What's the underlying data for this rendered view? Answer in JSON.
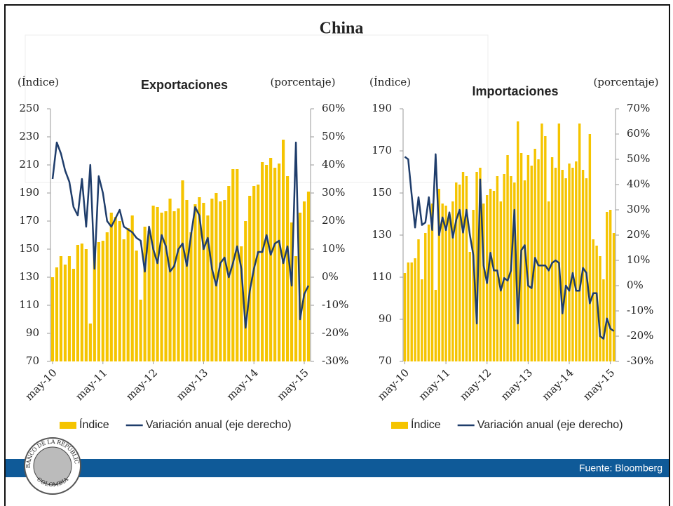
{
  "title": "China",
  "source": "Fuente: Bloomberg",
  "logo": {
    "top": "BANCO DE LA REPÚBLICA",
    "bottom": "COLOMBIA"
  },
  "chart_data": [
    {
      "type": "bar-line",
      "title": "Exportaciones",
      "ylabel": "(Índice)",
      "y2label": "(porcentaje)",
      "categories": [
        "may-10",
        null,
        null,
        null,
        null,
        null,
        null,
        null,
        null,
        null,
        null,
        null,
        "may-11",
        null,
        null,
        null,
        null,
        null,
        null,
        null,
        null,
        null,
        null,
        null,
        "may-12",
        null,
        null,
        null,
        null,
        null,
        null,
        null,
        null,
        null,
        null,
        null,
        "may-13",
        null,
        null,
        null,
        null,
        null,
        null,
        null,
        null,
        null,
        null,
        null,
        "may-14",
        null,
        null,
        null,
        null,
        null,
        null,
        null,
        null,
        null,
        null,
        null,
        "may-15",
        null
      ],
      "series": [
        {
          "name": "Índice",
          "type": "bar",
          "color": "#f5c400",
          "values": [
            130,
            137,
            145,
            139,
            145,
            136,
            153,
            154,
            150,
            97,
            152,
            155,
            156,
            162,
            176,
            173,
            170,
            157,
            165,
            174,
            149,
            114,
            166,
            163,
            181,
            180,
            176,
            177,
            186,
            177,
            179,
            199,
            185,
            162,
            182,
            187,
            183,
            174,
            186,
            190,
            184,
            185,
            195,
            207,
            207,
            152,
            170,
            188,
            195,
            196,
            212,
            210,
            215,
            208,
            211,
            228,
            202,
            169,
            145,
            176,
            184,
            191
          ]
        },
        {
          "name": "Variación anual (eje derecho)",
          "type": "line",
          "axis": "y2",
          "color": "#1f3d6b",
          "values": [
            35,
            48,
            44,
            38,
            34,
            25,
            22,
            35,
            18,
            40,
            3,
            36,
            30,
            20,
            18,
            21,
            24,
            18,
            17,
            16,
            14,
            13,
            2,
            18,
            10,
            5,
            15,
            11,
            2,
            4,
            10,
            12,
            4,
            15,
            25,
            22,
            10,
            14,
            3,
            -3,
            5,
            7,
            0,
            5,
            11,
            3,
            -18,
            -5,
            3,
            9,
            9,
            15,
            8,
            12,
            13,
            5,
            11,
            -3,
            48,
            -15,
            -6,
            -3
          ]
        }
      ],
      "ylim": [
        70,
        250
      ],
      "yticks": [
        70,
        90,
        110,
        130,
        150,
        170,
        190,
        210,
        230,
        250
      ],
      "y2lim": [
        -30,
        60
      ],
      "y2ticks": [
        {
          "value": -30,
          "label": "-30%"
        },
        {
          "value": -20,
          "label": "-20%"
        },
        {
          "value": -10,
          "label": "-10%"
        },
        {
          "value": 0,
          "label": "0%"
        },
        {
          "value": 10,
          "label": "10%"
        },
        {
          "value": 20,
          "label": "20%"
        },
        {
          "value": 30,
          "label": "30%"
        },
        {
          "value": 40,
          "label": "40%"
        },
        {
          "value": 50,
          "label": "50%"
        },
        {
          "value": 60,
          "label": "60%"
        }
      ]
    },
    {
      "type": "bar-line",
      "title": "Importaciones",
      "ylabel": "(Índice)",
      "y2label": "(porcentaje)",
      "categories": [
        "may-10",
        null,
        null,
        null,
        null,
        null,
        null,
        null,
        null,
        null,
        null,
        null,
        "may-11",
        null,
        null,
        null,
        null,
        null,
        null,
        null,
        null,
        null,
        null,
        null,
        "may-12",
        null,
        null,
        null,
        null,
        null,
        null,
        null,
        null,
        null,
        null,
        null,
        "may-13",
        null,
        null,
        null,
        null,
        null,
        null,
        null,
        null,
        null,
        null,
        null,
        "may-14",
        null,
        null,
        null,
        null,
        null,
        null,
        null,
        null,
        null,
        null,
        null,
        "may-15",
        null
      ],
      "series": [
        {
          "name": "Índice",
          "type": "bar",
          "color": "#f5c400",
          "values": [
            112,
            117,
            117,
            119,
            128,
            109,
            131,
            135,
            145,
            104,
            152,
            145,
            144,
            140,
            146,
            155,
            154,
            160,
            158,
            122,
            142,
            160,
            162,
            145,
            149,
            152,
            151,
            158,
            146,
            159,
            168,
            158,
            155,
            184,
            169,
            156,
            168,
            163,
            171,
            166,
            183,
            177,
            146,
            167,
            162,
            183,
            161,
            157,
            164,
            162,
            165,
            183,
            161,
            157,
            178,
            128,
            125,
            120,
            109,
            141,
            142,
            131
          ]
        },
        {
          "name": "Variación anual (eje derecho)",
          "type": "line",
          "axis": "y2",
          "color": "#1f3d6b",
          "values": [
            51,
            50,
            36,
            23,
            35,
            24,
            25,
            35,
            22,
            52,
            20,
            27,
            22,
            29,
            19,
            26,
            30,
            21,
            30,
            20,
            12,
            -15,
            42,
            8,
            1,
            13,
            6,
            6,
            -2,
            3,
            2,
            6,
            30,
            -15,
            14,
            16,
            0,
            -1,
            11,
            8,
            8,
            8,
            6,
            9,
            10,
            9,
            -11,
            0,
            -2,
            5,
            -2,
            -2,
            7,
            5,
            -7,
            -3,
            -3,
            -20,
            -21,
            -13,
            -17,
            -18
          ]
        }
      ],
      "ylim": [
        70,
        190
      ],
      "yticks": [
        70,
        90,
        110,
        130,
        150,
        170,
        190
      ],
      "y2lim": [
        -30,
        70
      ],
      "y2ticks": [
        {
          "value": -30,
          "label": "-30%"
        },
        {
          "value": -20,
          "label": "-20%"
        },
        {
          "value": -10,
          "label": "-10%"
        },
        {
          "value": 0,
          "label": "0%"
        },
        {
          "value": 10,
          "label": "10%"
        },
        {
          "value": 20,
          "label": "20%"
        },
        {
          "value": 30,
          "label": "30%"
        },
        {
          "value": 40,
          "label": "40%"
        },
        {
          "value": 50,
          "label": "50%"
        },
        {
          "value": 60,
          "label": "60%"
        },
        {
          "value": 70,
          "label": "70%"
        }
      ]
    }
  ]
}
